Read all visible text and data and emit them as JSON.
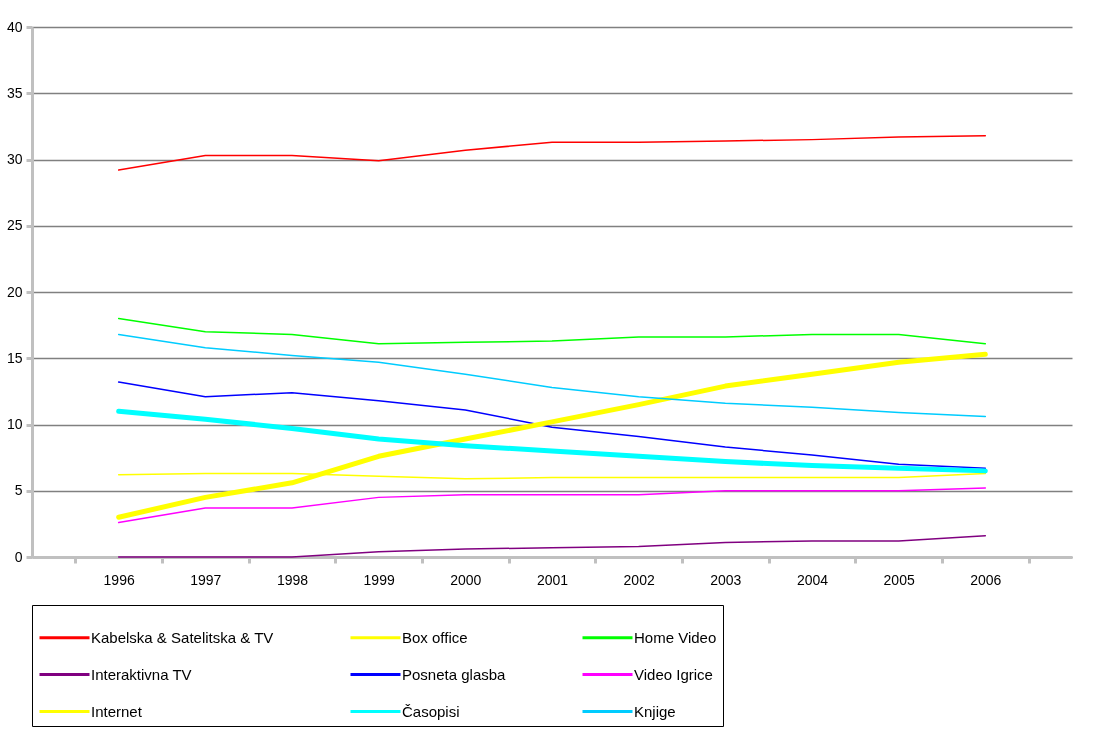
{
  "chart_data": {
    "type": "line",
    "categories": [
      "1996",
      "1997",
      "1998",
      "1999",
      "2000",
      "2001",
      "2002",
      "2003",
      "2004",
      "2005",
      "2006"
    ],
    "ylim": [
      0,
      40
    ],
    "yticks": [
      0,
      5,
      10,
      15,
      20,
      25,
      30,
      35,
      40
    ],
    "grid": "y",
    "legend": "bottom",
    "marker": "none",
    "line_style": "solid",
    "series": [
      {
        "name": "Kabelska & Satelitska & TV",
        "color": "#ff0000",
        "values": [
          29.2,
          30.3,
          30.3,
          29.9,
          30.7,
          31.3,
          31.3,
          31.4,
          31.5,
          31.7,
          31.8
        ]
      },
      {
        "name": "Box office",
        "color": "#ffff00",
        "values": [
          6.2,
          6.3,
          6.3,
          6.1,
          5.9,
          6.0,
          6.0,
          6.0,
          6.0,
          6.0,
          6.3
        ]
      },
      {
        "name": "Home Video",
        "color": "#00ff00",
        "values": [
          18.0,
          17.0,
          16.8,
          16.1,
          16.2,
          16.3,
          16.6,
          16.6,
          16.8,
          16.8,
          16.1
        ]
      },
      {
        "name": "Interaktivna TV",
        "color": "#800080",
        "values": [
          0,
          0,
          0,
          0.4,
          0.6,
          0.7,
          0.8,
          1.1,
          1.2,
          1.2,
          1.6
        ]
      },
      {
        "name": "Posneta glasba",
        "color": "#0000ff",
        "values": [
          13.2,
          12.1,
          12.4,
          11.8,
          11.1,
          9.8,
          9.1,
          8.3,
          7.7,
          7.0,
          6.7
        ]
      },
      {
        "name": "Video Igrice",
        "color": "#ff00ff",
        "values": [
          2.6,
          3.7,
          3.7,
          4.5,
          4.7,
          4.7,
          4.7,
          5.0,
          5.0,
          5.0,
          5.2
        ]
      },
      {
        "name": "Internet",
        "color": "#ffff00",
        "values": [
          3.0,
          4.5,
          5.6,
          7.6,
          8.9,
          10.2,
          11.5,
          12.9,
          13.8,
          14.7,
          15.3
        ]
      },
      {
        "name": "Časopisi",
        "color": "#00ffff",
        "values": [
          11.0,
          10.4,
          9.7,
          8.9,
          8.4,
          8.0,
          7.6,
          7.2,
          6.9,
          6.7,
          6.5
        ]
      },
      {
        "name": "Knjige",
        "color": "#00ccff",
        "values": [
          16.8,
          15.8,
          15.2,
          14.7,
          13.8,
          12.8,
          12.1,
          11.6,
          11.3,
          10.9,
          10.6
        ]
      }
    ]
  }
}
